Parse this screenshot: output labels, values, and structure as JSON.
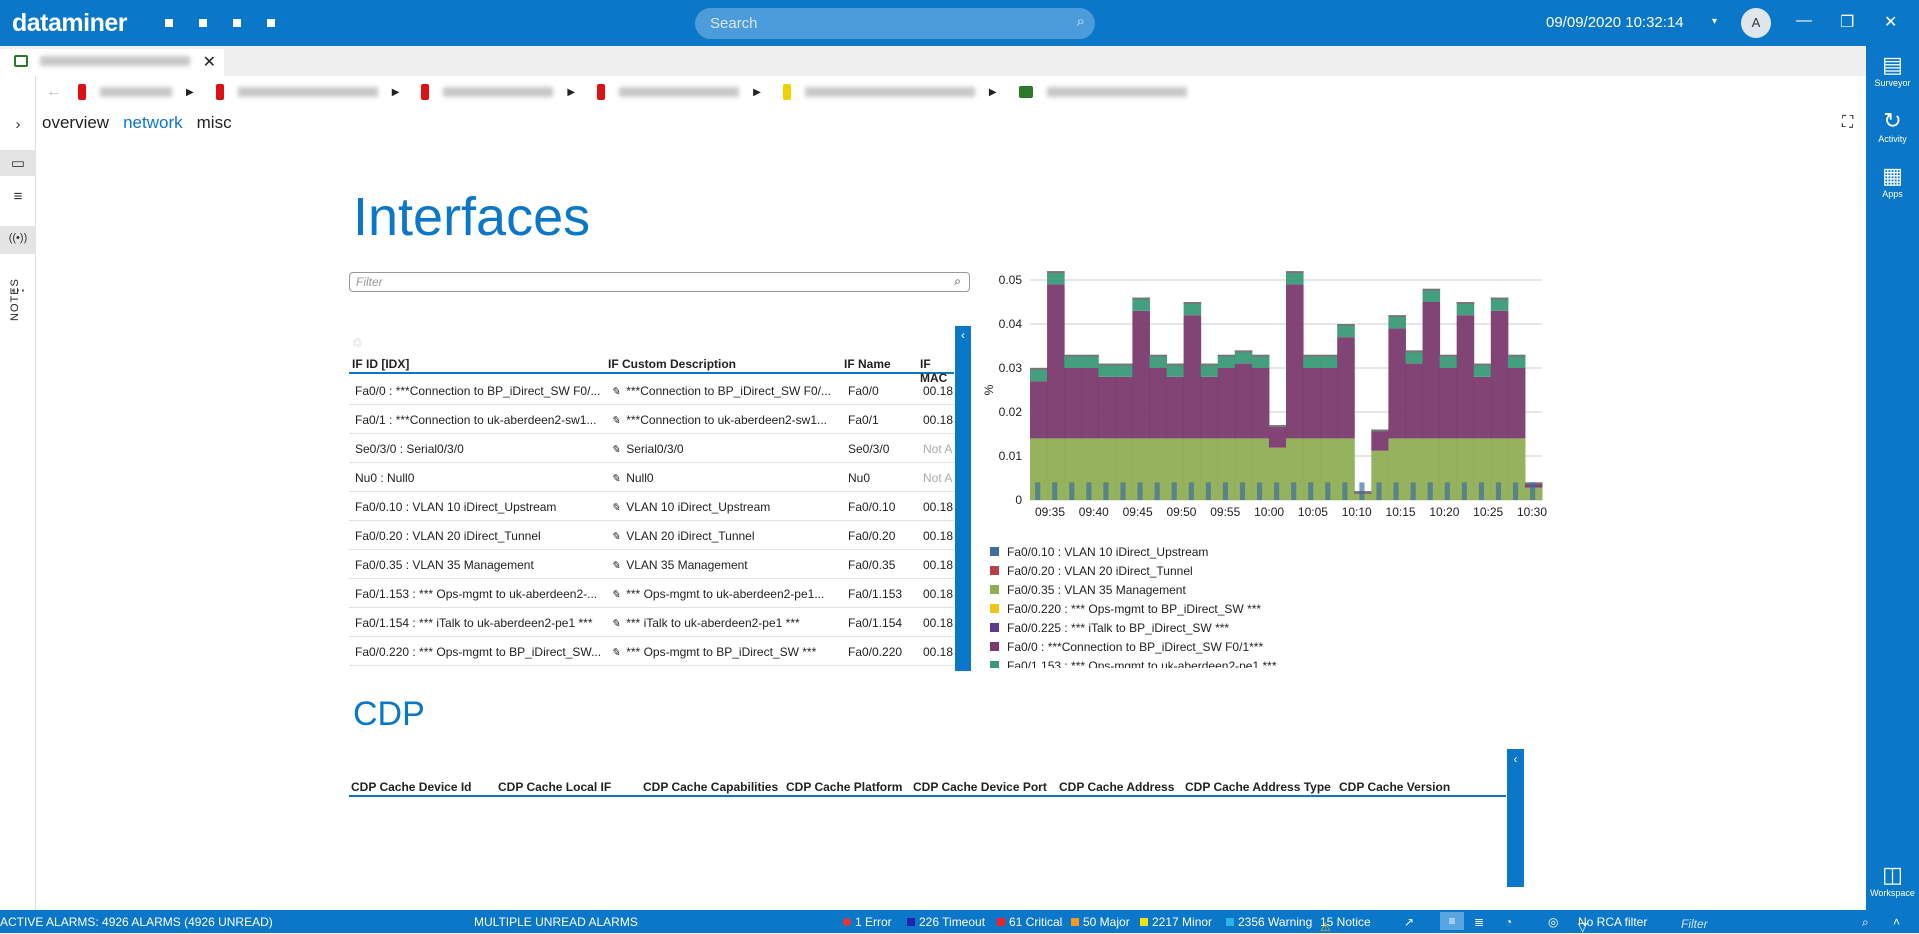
{
  "app": {
    "title": "dataminer",
    "search_placeholder": "Search",
    "datetime": "09/09/2020 10:32:14",
    "avatar_initial": "A"
  },
  "right_rail": {
    "items": [
      {
        "label": "Surveyor",
        "icon": "surveyor-icon"
      },
      {
        "label": "Activity",
        "icon": "activity-icon"
      },
      {
        "label": "Apps",
        "icon": "apps-icon"
      },
      {
        "label": "Workspace",
        "icon": "workspace-icon"
      }
    ]
  },
  "left_rail": {
    "notes_label": "NOTES"
  },
  "tabs": {
    "close_glyph": "✕"
  },
  "subnav": {
    "items": [
      "overview",
      "network",
      "misc"
    ],
    "active": "network"
  },
  "interfaces": {
    "title": "Interfaces",
    "filter_placeholder": "Filter",
    "columns": [
      "IF ID [IDX]",
      "IF Custom Description",
      "IF Name",
      "IF MAC"
    ],
    "rows": [
      {
        "id": "Fa0/0 : ***Connection to BP_iDirect_SW F0/...",
        "desc": "***Connection to BP_iDirect_SW F0/...",
        "name": "Fa0/0",
        "mac": "00.18."
      },
      {
        "id": "Fa0/1 : ***Connection to uk-aberdeen2-sw1...",
        "desc": "***Connection to uk-aberdeen2-sw1...",
        "name": "Fa0/1",
        "mac": "00.18."
      },
      {
        "id": "Se0/3/0 : Serial0/3/0",
        "desc": "Serial0/3/0",
        "name": "Se0/3/0",
        "mac": "Not A"
      },
      {
        "id": "Nu0 : Null0",
        "desc": "Null0",
        "name": "Nu0",
        "mac": "Not A"
      },
      {
        "id": "Fa0/0.10 : VLAN 10 iDirect_Upstream",
        "desc": "VLAN 10 iDirect_Upstream",
        "name": "Fa0/0.10",
        "mac": "00.18."
      },
      {
        "id": "Fa0/0.20 : VLAN 20 iDirect_Tunnel",
        "desc": "VLAN 20 iDirect_Tunnel",
        "name": "Fa0/0.20",
        "mac": "00.18."
      },
      {
        "id": "Fa0/0.35 : VLAN 35 Management",
        "desc": "VLAN 35 Management",
        "name": "Fa0/0.35",
        "mac": "00.18."
      },
      {
        "id": "Fa0/1.153 : *** Ops-mgmt to uk-aberdeen2-...",
        "desc": "*** Ops-mgmt to uk-aberdeen2-pe1...",
        "name": "Fa0/1.153",
        "mac": "00.18."
      },
      {
        "id": "Fa0/1.154 : *** iTalk to uk-aberdeen2-pe1 ***",
        "desc": "*** iTalk to uk-aberdeen2-pe1 ***",
        "name": "Fa0/1.154",
        "mac": "00.18."
      },
      {
        "id": "Fa0/0.220 : *** Ops-mgmt to BP_iDirect_SW...",
        "desc": "*** Ops-mgmt to BP_iDirect_SW ***",
        "name": "Fa0/0.220",
        "mac": "00.18."
      }
    ]
  },
  "chart_data": {
    "type": "area",
    "ylabel": "%",
    "ylim": [
      0,
      0.05
    ],
    "yticks": [
      "0",
      "0.01",
      "0.02",
      "0.03",
      "0.04",
      "0.05"
    ],
    "xticks": [
      "09:35",
      "09:40",
      "09:45",
      "09:50",
      "09:55",
      "10:00",
      "10:05",
      "10:10",
      "10:15",
      "10:20",
      "10:25",
      "10:30"
    ],
    "stacked_totals": [
      0.03,
      0.052,
      0.033,
      0.033,
      0.031,
      0.031,
      0.046,
      0.033,
      0.031,
      0.045,
      0.031,
      0.033,
      0.034,
      0.033,
      0.017,
      0.052,
      0.033,
      0.033,
      0.04,
      0.002,
      0.016,
      0.042,
      0.034,
      0.048,
      0.033,
      0.045,
      0.031,
      0.046,
      0.033,
      0.004
    ],
    "series": [
      {
        "name": "Fa0/0.10 : VLAN 10 iDirect_Upstream",
        "color": "#3f6f9e"
      },
      {
        "name": "Fa0/0.20 : VLAN 20 iDirect_Tunnel",
        "color": "#b8404a"
      },
      {
        "name": "Fa0/0.35 : VLAN 35 Management",
        "color": "#8fae53"
      },
      {
        "name": "Fa0/0.220 : *** Ops-mgmt to BP_iDirect_SW ***",
        "color": "#f2c418"
      },
      {
        "name": "Fa0/0.225 : *** iTalk to BP_iDirect_SW ***",
        "color": "#5a3b8c"
      },
      {
        "name": "Fa0/0 : ***Connection to BP_iDirect_SW F0/1***",
        "color": "#7a3a6e"
      },
      {
        "name": "Fa0/1.153 : *** Ops-mgmt to uk-aberdeen2-pe1 ***",
        "color": "#3a9a78"
      }
    ]
  },
  "cdp": {
    "title": "CDP",
    "columns": [
      "CDP Cache Device Id",
      "CDP Cache Local IF",
      "CDP Cache Capabilities",
      "CDP Cache Platform",
      "CDP Cache Device Port",
      "CDP Cache Address",
      "CDP Cache Address Type",
      "CDP Cache Version"
    ]
  },
  "status_bar": {
    "active_alarms": "ACTIVE ALARMS: 4926 ALARMS (4926 UNREAD)",
    "multiple_unread": "MULTIPLE UNREAD ALARMS",
    "error": "1 Error",
    "timeout": "226 Timeout",
    "critical": "61 Critical",
    "major": "50 Major",
    "minor": "2217 Minor",
    "warning": "2356 Warning",
    "notice": "15 Notice",
    "rca": "No RCA filter",
    "filter_placeholder": "Filter"
  }
}
